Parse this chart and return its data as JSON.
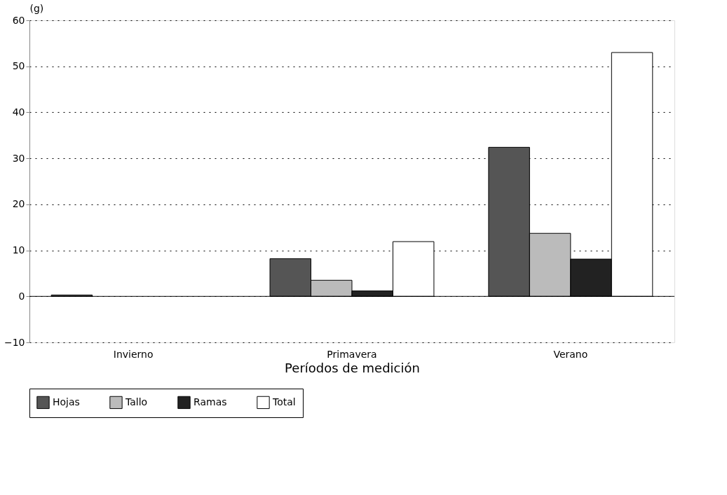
{
  "chart_data": {
    "type": "bar",
    "xlabel": "Períodos de medición",
    "ylabel": "(g)",
    "categories": [
      "Invierno",
      "Primavera",
      "Verano"
    ],
    "series": [
      {
        "name": "Hojas",
        "color": "#555555",
        "values": [
          0.3,
          8.2,
          32.4
        ]
      },
      {
        "name": "Tallo",
        "color": "#bbbbbb",
        "values": [
          null,
          3.5,
          13.7
        ]
      },
      {
        "name": "Ramas",
        "color": "#222222",
        "values": [
          null,
          1.2,
          8.1
        ]
      },
      {
        "name": "Total",
        "color": "#ffffff",
        "values": [
          null,
          11.9,
          53.0
        ]
      }
    ],
    "ylim": [
      -10,
      60
    ],
    "yticks": [
      -10,
      0,
      10,
      20,
      30,
      40,
      50,
      60
    ],
    "grid": "y",
    "legend": "bottom"
  }
}
